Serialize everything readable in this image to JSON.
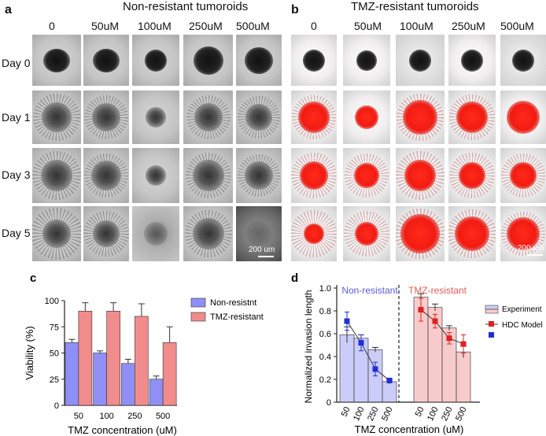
{
  "panel_a": {
    "letter": "a",
    "title": "Non-resistant tumoroids",
    "columns": [
      "0",
      "50uM",
      "100uM",
      "250uM",
      "500uM"
    ],
    "rows": [
      "Day 0",
      "Day 1",
      "Day 3",
      "Day 5"
    ],
    "scale_bar": "200 um"
  },
  "panel_b": {
    "letter": "b",
    "title": "TMZ-resistant tumoroids",
    "columns": [
      "0",
      "50uM",
      "100uM",
      "250uM",
      "500uM"
    ],
    "scale_bar": "200 um"
  },
  "colors": {
    "non_resistant": "#8f8ff5",
    "tmz_resistant": "#f08c8c",
    "model_line": "#3a3a3a",
    "model_nonres_marker": "#1f2fd8",
    "model_res_marker": "#e02020",
    "non_resistant_label": "#5b5bd6",
    "tmz_resistant_label": "#e05a5a"
  },
  "chart_data": [
    {
      "panel": "c",
      "type": "bar",
      "title": "",
      "categories": [
        "50",
        "100",
        "250",
        "500"
      ],
      "series": [
        {
          "name": "Non-resistnt",
          "values": [
            60,
            50,
            40,
            25
          ],
          "errors": [
            3,
            2,
            4,
            3
          ]
        },
        {
          "name": "TMZ-resistant",
          "values": [
            90,
            90,
            85,
            60
          ],
          "errors": [
            8,
            8,
            12,
            15
          ]
        }
      ],
      "xlabel": "TMZ concentration (uM)",
      "ylabel": "Viability (%)",
      "ylim": [
        0,
        100
      ],
      "yticks": [
        "0",
        "25",
        "50",
        "75",
        "100"
      ],
      "legend": "top-right",
      "grid": false
    },
    {
      "panel": "d",
      "type": "bar",
      "title": "",
      "group_labels": [
        "Non-resistant",
        "TMZ-resistant"
      ],
      "categories": [
        "50",
        "100",
        "250",
        "500",
        "50",
        "100",
        "250",
        "500"
      ],
      "series": [
        {
          "name": "Experiment",
          "values": [
            0.59,
            0.56,
            0.46,
            0.18,
            0.92,
            0.83,
            0.65,
            0.44
          ],
          "errors": [
            0.07,
            0.03,
            0.02,
            0.02,
            0.03,
            0.03,
            0.02,
            0.05
          ]
        },
        {
          "name": "HDC Model",
          "values": [
            0.71,
            0.52,
            0.29,
            0.19,
            0.81,
            0.71,
            0.56,
            0.51
          ],
          "errors": [
            0.08,
            0.07,
            0.06,
            0.02,
            0.1,
            0.06,
            0.05,
            0.08
          ]
        }
      ],
      "xlabel": "TMZ concentration (uM)",
      "ylabel": "Normalized invasion length",
      "ylim": [
        0,
        1.0
      ],
      "yticks": [
        "0",
        "0.2",
        "0.4",
        "0.6",
        "0.8",
        "1.0"
      ],
      "legend": "top-right",
      "grid": false
    }
  ]
}
